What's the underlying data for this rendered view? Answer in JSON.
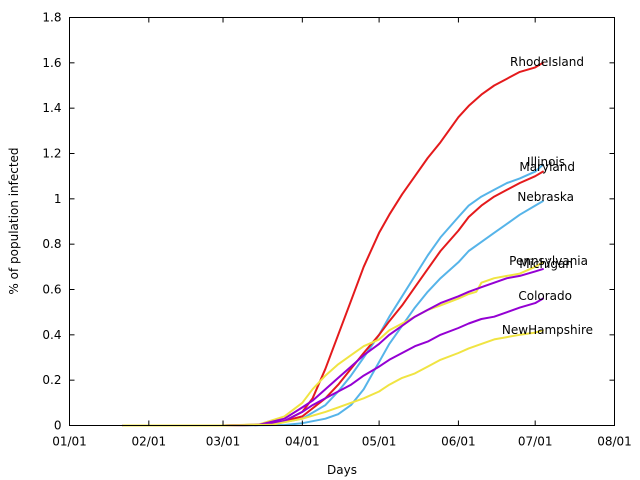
{
  "chart_data": {
    "type": "line",
    "xlabel": "Days",
    "ylabel": "% of population infected",
    "xlim": [
      "2020-01-01",
      "2020-08-01"
    ],
    "ylim": [
      0,
      1.8
    ],
    "grid": false,
    "legend": "none (series labeled at line ends)",
    "xticks": [
      {
        "date": "2020-01-01",
        "label": "01/01"
      },
      {
        "date": "2020-02-01",
        "label": "02/01"
      },
      {
        "date": "2020-03-01",
        "label": "03/01"
      },
      {
        "date": "2020-04-01",
        "label": "04/01"
      },
      {
        "date": "2020-05-01",
        "label": "05/01"
      },
      {
        "date": "2020-06-01",
        "label": "06/01"
      },
      {
        "date": "2020-07-01",
        "label": "07/01"
      },
      {
        "date": "2020-08-01",
        "label": "08/01"
      }
    ],
    "yticks": [
      {
        "value": 0,
        "label": "0"
      },
      {
        "value": 0.2,
        "label": "0.2"
      },
      {
        "value": 0.4,
        "label": "0.4"
      },
      {
        "value": 0.6,
        "label": "0.6"
      },
      {
        "value": 0.8,
        "label": "0.8"
      },
      {
        "value": 1.0,
        "label": "1"
      },
      {
        "value": 1.2,
        "label": "1.2"
      },
      {
        "value": 1.4,
        "label": "1.4"
      },
      {
        "value": 1.6,
        "label": "1.6"
      },
      {
        "value": 1.8,
        "label": "1.8"
      }
    ],
    "series": [
      {
        "name": "RhodeIsland",
        "color": "#e41a1c",
        "points": [
          [
            "2020-01-22",
            0
          ],
          [
            "2020-03-01",
            0
          ],
          [
            "2020-03-15",
            0.002
          ],
          [
            "2020-03-25",
            0.02
          ],
          [
            "2020-04-01",
            0.06
          ],
          [
            "2020-04-05",
            0.12
          ],
          [
            "2020-04-10",
            0.25
          ],
          [
            "2020-04-15",
            0.4
          ],
          [
            "2020-04-20",
            0.55
          ],
          [
            "2020-04-25",
            0.7
          ],
          [
            "2020-05-01",
            0.85
          ],
          [
            "2020-05-05",
            0.93
          ],
          [
            "2020-05-10",
            1.02
          ],
          [
            "2020-05-15",
            1.1
          ],
          [
            "2020-05-20",
            1.18
          ],
          [
            "2020-05-25",
            1.25
          ],
          [
            "2020-06-01",
            1.36
          ],
          [
            "2020-06-05",
            1.41
          ],
          [
            "2020-06-10",
            1.46
          ],
          [
            "2020-06-15",
            1.5
          ],
          [
            "2020-06-20",
            1.53
          ],
          [
            "2020-06-25",
            1.56
          ],
          [
            "2020-07-01",
            1.58
          ],
          [
            "2020-07-04",
            1.6
          ]
        ]
      },
      {
        "name": "Illinois",
        "color": "#56b4e9",
        "points": [
          [
            "2020-01-22",
            0
          ],
          [
            "2020-03-01",
            0
          ],
          [
            "2020-03-20",
            0.005
          ],
          [
            "2020-04-01",
            0.03
          ],
          [
            "2020-04-10",
            0.09
          ],
          [
            "2020-04-15",
            0.15
          ],
          [
            "2020-04-20",
            0.22
          ],
          [
            "2020-04-25",
            0.3
          ],
          [
            "2020-05-01",
            0.4
          ],
          [
            "2020-05-05",
            0.48
          ],
          [
            "2020-05-10",
            0.57
          ],
          [
            "2020-05-15",
            0.66
          ],
          [
            "2020-05-20",
            0.75
          ],
          [
            "2020-05-25",
            0.83
          ],
          [
            "2020-06-01",
            0.92
          ],
          [
            "2020-06-05",
            0.97
          ],
          [
            "2020-06-10",
            1.01
          ],
          [
            "2020-06-15",
            1.04
          ],
          [
            "2020-06-20",
            1.07
          ],
          [
            "2020-06-25",
            1.09
          ],
          [
            "2020-07-01",
            1.12
          ],
          [
            "2020-07-04",
            1.15
          ]
        ]
      },
      {
        "name": "Maryland",
        "color": "#e41a1c",
        "points": [
          [
            "2020-01-22",
            0
          ],
          [
            "2020-03-01",
            0
          ],
          [
            "2020-03-20",
            0.005
          ],
          [
            "2020-04-01",
            0.04
          ],
          [
            "2020-04-10",
            0.12
          ],
          [
            "2020-04-15",
            0.18
          ],
          [
            "2020-04-20",
            0.25
          ],
          [
            "2020-04-25",
            0.32
          ],
          [
            "2020-05-01",
            0.4
          ],
          [
            "2020-05-05",
            0.46
          ],
          [
            "2020-05-10",
            0.53
          ],
          [
            "2020-05-15",
            0.61
          ],
          [
            "2020-05-20",
            0.69
          ],
          [
            "2020-05-25",
            0.77
          ],
          [
            "2020-06-01",
            0.86
          ],
          [
            "2020-06-05",
            0.92
          ],
          [
            "2020-06-10",
            0.97
          ],
          [
            "2020-06-15",
            1.01
          ],
          [
            "2020-06-20",
            1.04
          ],
          [
            "2020-06-25",
            1.07
          ],
          [
            "2020-07-01",
            1.1
          ],
          [
            "2020-07-04",
            1.12
          ]
        ]
      },
      {
        "name": "Nebraska",
        "color": "#56b4e9",
        "points": [
          [
            "2020-01-22",
            0
          ],
          [
            "2020-03-01",
            0
          ],
          [
            "2020-03-25",
            0.002
          ],
          [
            "2020-04-01",
            0.01
          ],
          [
            "2020-04-10",
            0.03
          ],
          [
            "2020-04-15",
            0.05
          ],
          [
            "2020-04-20",
            0.09
          ],
          [
            "2020-04-25",
            0.16
          ],
          [
            "2020-05-01",
            0.28
          ],
          [
            "2020-05-05",
            0.36
          ],
          [
            "2020-05-10",
            0.44
          ],
          [
            "2020-05-15",
            0.52
          ],
          [
            "2020-05-20",
            0.59
          ],
          [
            "2020-05-25",
            0.65
          ],
          [
            "2020-06-01",
            0.72
          ],
          [
            "2020-06-05",
            0.77
          ],
          [
            "2020-06-10",
            0.81
          ],
          [
            "2020-06-15",
            0.85
          ],
          [
            "2020-06-20",
            0.89
          ],
          [
            "2020-06-25",
            0.93
          ],
          [
            "2020-07-01",
            0.97
          ],
          [
            "2020-07-04",
            0.99
          ]
        ]
      },
      {
        "name": "Pennsylvania",
        "color": "#f0e442",
        "points": [
          [
            "2020-01-22",
            0
          ],
          [
            "2020-03-01",
            0
          ],
          [
            "2020-03-15",
            0.005
          ],
          [
            "2020-03-25",
            0.04
          ],
          [
            "2020-04-01",
            0.1
          ],
          [
            "2020-04-05",
            0.16
          ],
          [
            "2020-04-10",
            0.22
          ],
          [
            "2020-04-15",
            0.27
          ],
          [
            "2020-04-20",
            0.31
          ],
          [
            "2020-04-25",
            0.35
          ],
          [
            "2020-05-01",
            0.38
          ],
          [
            "2020-05-05",
            0.42
          ],
          [
            "2020-05-10",
            0.45
          ],
          [
            "2020-05-15",
            0.48
          ],
          [
            "2020-05-20",
            0.51
          ],
          [
            "2020-05-25",
            0.53
          ],
          [
            "2020-06-01",
            0.56
          ],
          [
            "2020-06-05",
            0.58
          ],
          [
            "2020-06-08",
            0.59
          ],
          [
            "2020-06-10",
            0.63
          ],
          [
            "2020-06-15",
            0.65
          ],
          [
            "2020-06-20",
            0.66
          ],
          [
            "2020-06-25",
            0.67
          ],
          [
            "2020-07-01",
            0.7
          ],
          [
            "2020-07-04",
            0.72
          ]
        ]
      },
      {
        "name": "Michigan",
        "color": "#9400d3",
        "points": [
          [
            "2020-01-22",
            0
          ],
          [
            "2020-03-01",
            0
          ],
          [
            "2020-03-15",
            0.003
          ],
          [
            "2020-03-25",
            0.03
          ],
          [
            "2020-04-01",
            0.08
          ],
          [
            "2020-04-05",
            0.11
          ],
          [
            "2020-04-10",
            0.16
          ],
          [
            "2020-04-15",
            0.21
          ],
          [
            "2020-04-20",
            0.26
          ],
          [
            "2020-04-25",
            0.31
          ],
          [
            "2020-05-01",
            0.36
          ],
          [
            "2020-05-05",
            0.4
          ],
          [
            "2020-05-10",
            0.44
          ],
          [
            "2020-05-15",
            0.48
          ],
          [
            "2020-05-20",
            0.51
          ],
          [
            "2020-05-25",
            0.54
          ],
          [
            "2020-06-01",
            0.57
          ],
          [
            "2020-06-05",
            0.59
          ],
          [
            "2020-06-10",
            0.61
          ],
          [
            "2020-06-15",
            0.63
          ],
          [
            "2020-06-20",
            0.65
          ],
          [
            "2020-06-25",
            0.66
          ],
          [
            "2020-07-01",
            0.68
          ],
          [
            "2020-07-04",
            0.69
          ]
        ]
      },
      {
        "name": "Colorado",
        "color": "#9400d3",
        "points": [
          [
            "2020-01-22",
            0
          ],
          [
            "2020-03-01",
            0
          ],
          [
            "2020-03-15",
            0.002
          ],
          [
            "2020-03-25",
            0.02
          ],
          [
            "2020-04-01",
            0.06
          ],
          [
            "2020-04-05",
            0.09
          ],
          [
            "2020-04-10",
            0.12
          ],
          [
            "2020-04-15",
            0.15
          ],
          [
            "2020-04-20",
            0.18
          ],
          [
            "2020-04-25",
            0.22
          ],
          [
            "2020-05-01",
            0.26
          ],
          [
            "2020-05-05",
            0.29
          ],
          [
            "2020-05-10",
            0.32
          ],
          [
            "2020-05-15",
            0.35
          ],
          [
            "2020-05-20",
            0.37
          ],
          [
            "2020-05-25",
            0.4
          ],
          [
            "2020-06-01",
            0.43
          ],
          [
            "2020-06-05",
            0.45
          ],
          [
            "2020-06-10",
            0.47
          ],
          [
            "2020-06-15",
            0.48
          ],
          [
            "2020-06-20",
            0.5
          ],
          [
            "2020-06-25",
            0.52
          ],
          [
            "2020-07-01",
            0.54
          ],
          [
            "2020-07-04",
            0.56
          ]
        ]
      },
      {
        "name": "NewHampshire",
        "color": "#f0e442",
        "points": [
          [
            "2020-01-22",
            0
          ],
          [
            "2020-03-01",
            0
          ],
          [
            "2020-03-20",
            0.003
          ],
          [
            "2020-04-01",
            0.03
          ],
          [
            "2020-04-10",
            0.06
          ],
          [
            "2020-04-15",
            0.08
          ],
          [
            "2020-04-20",
            0.1
          ],
          [
            "2020-04-25",
            0.12
          ],
          [
            "2020-05-01",
            0.15
          ],
          [
            "2020-05-05",
            0.18
          ],
          [
            "2020-05-10",
            0.21
          ],
          [
            "2020-05-15",
            0.23
          ],
          [
            "2020-05-20",
            0.26
          ],
          [
            "2020-05-25",
            0.29
          ],
          [
            "2020-06-01",
            0.32
          ],
          [
            "2020-06-05",
            0.34
          ],
          [
            "2020-06-10",
            0.36
          ],
          [
            "2020-06-15",
            0.38
          ],
          [
            "2020-06-20",
            0.39
          ],
          [
            "2020-06-25",
            0.4
          ],
          [
            "2020-07-01",
            0.41
          ],
          [
            "2020-07-04",
            0.42
          ]
        ]
      }
    ]
  }
}
